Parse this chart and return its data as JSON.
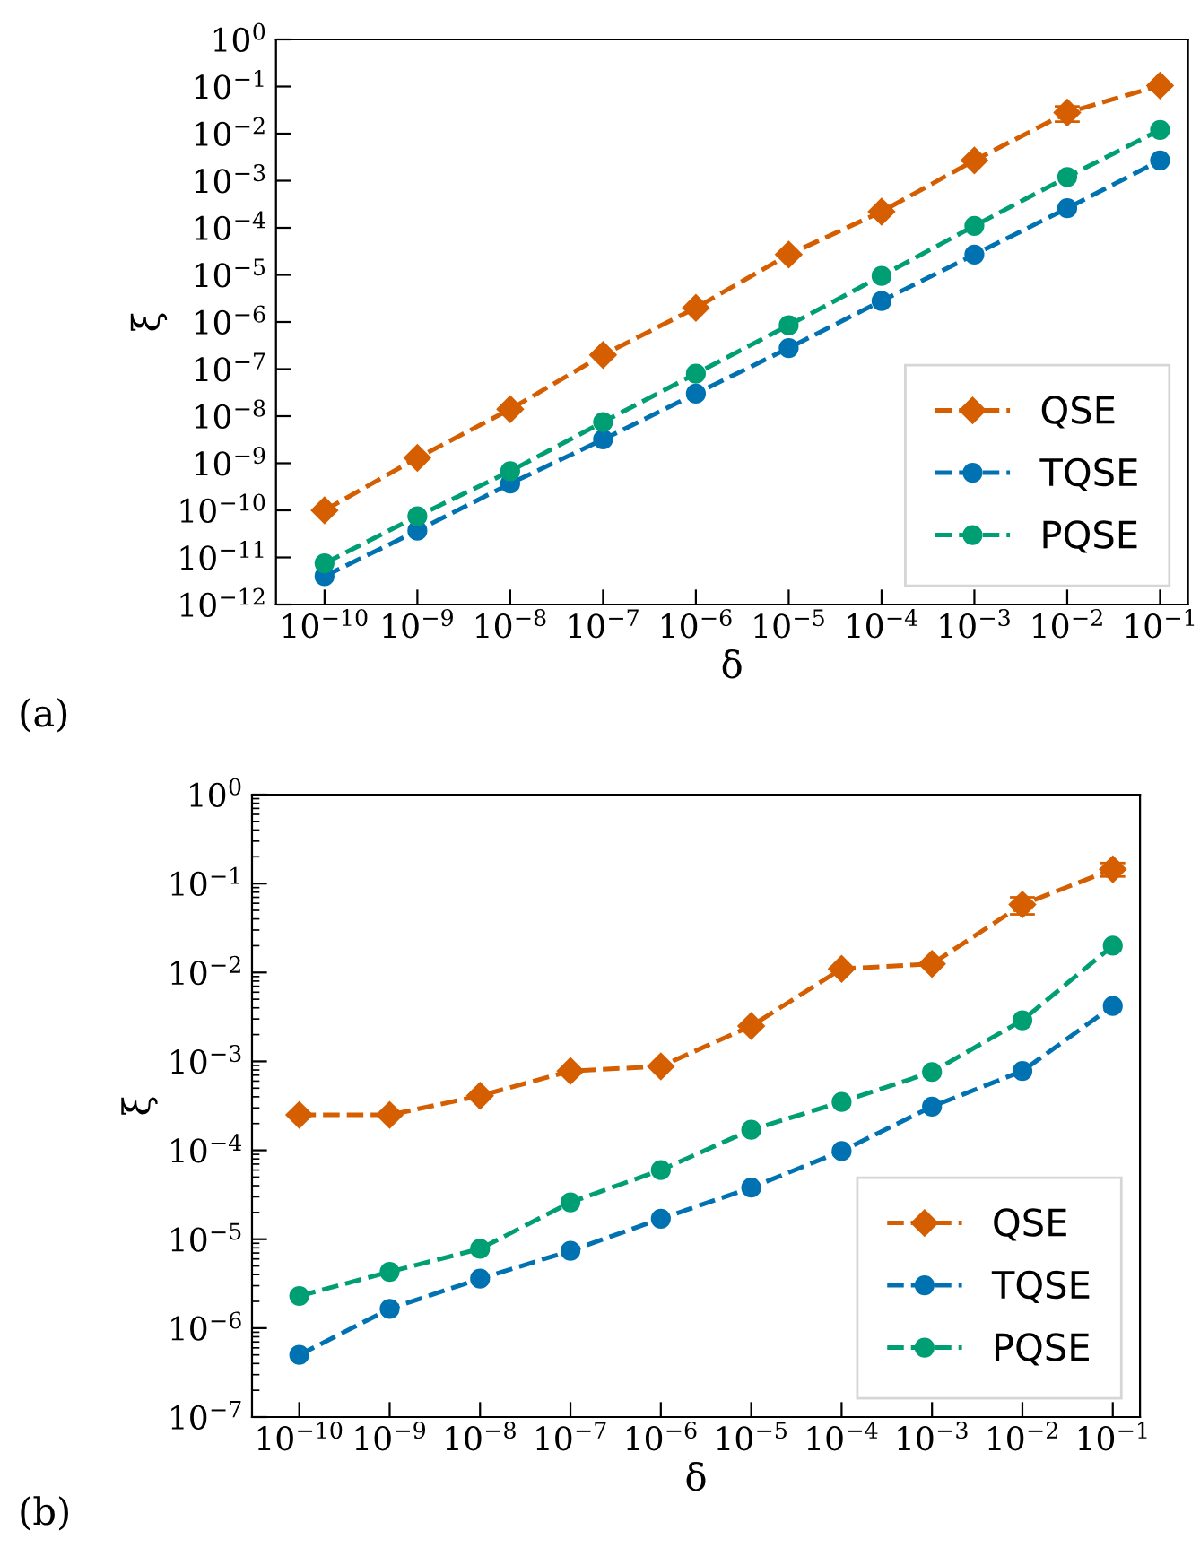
{
  "chart_data": [
    {
      "type": "line",
      "xlabel": "δ",
      "ylabel": "ξ",
      "annotations": [
        "(a)"
      ],
      "log": "xy",
      "grid": false,
      "legend": "lower right",
      "line_style": "dashed",
      "x": [
        1e-10,
        1e-09,
        1e-08,
        1e-07,
        1e-06,
        1e-05,
        0.0001,
        0.001,
        0.01,
        0.1
      ],
      "xlim": [
        3e-11,
        0.2
      ],
      "ylim": [
        1e-12,
        1
      ],
      "xticks": [
        {
          "value": 1e-10,
          "label": "10$^{−10}$"
        },
        {
          "value": 1e-09,
          "label": "10$^{−9}$"
        },
        {
          "value": 1e-08,
          "label": "10$^{−8}$"
        },
        {
          "value": 1e-07,
          "label": "10$^{−7}$"
        },
        {
          "value": 1e-06,
          "label": "10$^{−6}$"
        },
        {
          "value": 1e-05,
          "label": "10$^{−5}$"
        },
        {
          "value": 0.0001,
          "label": "10$^{−4}$"
        },
        {
          "value": 0.001,
          "label": "10$^{−3}$"
        },
        {
          "value": 0.01,
          "label": "10$^{−2}$"
        },
        {
          "value": 0.1,
          "label": "10$^{−1}$"
        }
      ],
      "yticks": [
        {
          "value": 1e-12,
          "label": "10$^{−12}$"
        },
        {
          "value": 1e-11,
          "label": "10$^{−11}$"
        },
        {
          "value": 1e-10,
          "label": "10$^{−10}$"
        },
        {
          "value": 1e-09,
          "label": "10$^{−9}$"
        },
        {
          "value": 1e-08,
          "label": "10$^{−8}$"
        },
        {
          "value": 1e-07,
          "label": "10$^{−7}$"
        },
        {
          "value": 1e-06,
          "label": "10$^{−6}$"
        },
        {
          "value": 1e-05,
          "label": "10$^{−5}$"
        },
        {
          "value": 0.0001,
          "label": "10$^{−4}$"
        },
        {
          "value": 0.001,
          "label": "10$^{−3}$"
        },
        {
          "value": 0.01,
          "label": "10$^{−2}$"
        },
        {
          "value": 0.1,
          "label": "10$^{−1}$"
        },
        {
          "value": 1,
          "label": "10$^{0}$"
        }
      ],
      "series": [
        {
          "name": "QSE",
          "color": "#d55e00",
          "marker": "diamond",
          "values": [
            1e-10,
            1.3e-09,
            1.4e-08,
            2e-07,
            2e-06,
            2.7e-05,
            0.00022,
            0.0027,
            0.028,
            0.105
          ],
          "errors": [
            null,
            null,
            null,
            null,
            null,
            null,
            null,
            null,
            [
              0.018,
              0.038
            ],
            null
          ]
        },
        {
          "name": "TQSE",
          "color": "#0072b2",
          "marker": "circle",
          "values": [
            4e-12,
            3.7e-11,
            3.7e-10,
            3.2e-09,
            3e-08,
            2.8e-07,
            2.8e-06,
            2.7e-05,
            0.00026,
            0.0027
          ]
        },
        {
          "name": "PQSE",
          "color": "#009e73",
          "marker": "circle",
          "values": [
            7.5e-12,
            7.5e-11,
            6.8e-10,
            7.5e-09,
            8e-08,
            8.5e-07,
            9.5e-06,
            0.00011,
            0.0012,
            0.012
          ]
        }
      ]
    },
    {
      "type": "line",
      "xlabel": "δ",
      "ylabel": "ξ",
      "annotations": [
        "(b)"
      ],
      "log": "xy",
      "grid": false,
      "legend": "lower right",
      "line_style": "dashed",
      "x": [
        1e-10,
        1e-09,
        1e-08,
        1e-07,
        1e-06,
        1e-05,
        0.0001,
        0.001,
        0.01,
        0.1
      ],
      "xlim": [
        3e-11,
        0.2
      ],
      "ylim": [
        1e-07,
        1
      ],
      "xticks": [
        {
          "value": 1e-10,
          "label": "10$^{−10}$"
        },
        {
          "value": 1e-09,
          "label": "10$^{−9}$"
        },
        {
          "value": 1e-08,
          "label": "10$^{−8}$"
        },
        {
          "value": 1e-07,
          "label": "10$^{−7}$"
        },
        {
          "value": 1e-06,
          "label": "10$^{−6}$"
        },
        {
          "value": 1e-05,
          "label": "10$^{−5}$"
        },
        {
          "value": 0.0001,
          "label": "10$^{−4}$"
        },
        {
          "value": 0.001,
          "label": "10$^{−3}$"
        },
        {
          "value": 0.01,
          "label": "10$^{−2}$"
        },
        {
          "value": 0.1,
          "label": "10$^{−1}$"
        }
      ],
      "yticks": [
        {
          "value": 1e-07,
          "label": "10$^{−7}$"
        },
        {
          "value": 1e-06,
          "label": "10$^{−6}$"
        },
        {
          "value": 1e-05,
          "label": "10$^{−5}$"
        },
        {
          "value": 0.0001,
          "label": "10$^{−4}$"
        },
        {
          "value": 0.001,
          "label": "10$^{−3}$"
        },
        {
          "value": 0.01,
          "label": "10$^{−2}$"
        },
        {
          "value": 0.1,
          "label": "10$^{−1}$"
        },
        {
          "value": 1,
          "label": "10$^{0}$"
        }
      ],
      "series": [
        {
          "name": "QSE",
          "color": "#d55e00",
          "marker": "diamond",
          "values": [
            0.00025,
            0.00025,
            0.00041,
            0.00078,
            0.00088,
            0.0025,
            0.011,
            0.0125,
            0.058,
            0.145
          ],
          "errors": [
            null,
            null,
            null,
            null,
            null,
            null,
            null,
            null,
            [
              0.045,
              0.07
            ],
            [
              0.12,
              0.17
            ]
          ]
        },
        {
          "name": "TQSE",
          "color": "#0072b2",
          "marker": "circle",
          "values": [
            5e-07,
            1.65e-06,
            3.6e-06,
            7.4e-06,
            1.7e-05,
            3.8e-05,
            9.8e-05,
            0.00031,
            0.00078,
            0.0042
          ]
        },
        {
          "name": "PQSE",
          "color": "#009e73",
          "marker": "circle",
          "values": [
            2.3e-06,
            4.3e-06,
            7.8e-06,
            2.6e-05,
            6e-05,
            0.00017,
            0.00035,
            0.00076,
            0.0029,
            0.02
          ]
        }
      ]
    }
  ]
}
